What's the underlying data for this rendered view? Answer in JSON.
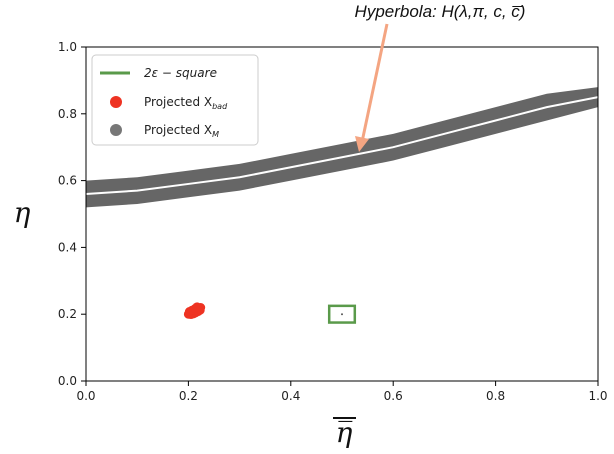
{
  "chart_data": {
    "type": "scatter",
    "xlabel": "η̅",
    "ylabel": "η",
    "xlim": [
      0.0,
      1.0
    ],
    "ylim": [
      0.0,
      1.0
    ],
    "x_ticks": [
      "0.0",
      "0.2",
      "0.4",
      "0.6",
      "0.8",
      "1.0"
    ],
    "y_ticks": [
      "0.0",
      "0.2",
      "0.4",
      "0.6",
      "0.8",
      "1.0"
    ],
    "grid": false,
    "legend_position": "top-left",
    "annotation": {
      "text": "Hyperbola: H(λ,π, c, c̅)",
      "points_to": {
        "x": 0.54,
        "y": 0.69
      }
    },
    "series": [
      {
        "name": "2ε − square",
        "kind": "square",
        "color": "#5a9a4a",
        "center": {
          "x": 0.5,
          "y": 0.2
        },
        "half_width": 0.025
      },
      {
        "name": "Projected X_bad",
        "kind": "points",
        "color": "#ee3322",
        "points": [
          {
            "x": 0.2,
            "y": 0.2
          },
          {
            "x": 0.203,
            "y": 0.203
          },
          {
            "x": 0.206,
            "y": 0.205
          },
          {
            "x": 0.209,
            "y": 0.207
          },
          {
            "x": 0.212,
            "y": 0.21
          },
          {
            "x": 0.215,
            "y": 0.212
          },
          {
            "x": 0.218,
            "y": 0.215
          },
          {
            "x": 0.221,
            "y": 0.218
          },
          {
            "x": 0.224,
            "y": 0.22
          },
          {
            "x": 0.205,
            "y": 0.199
          },
          {
            "x": 0.21,
            "y": 0.201
          },
          {
            "x": 0.214,
            "y": 0.204
          },
          {
            "x": 0.219,
            "y": 0.208
          },
          {
            "x": 0.223,
            "y": 0.212
          },
          {
            "x": 0.202,
            "y": 0.208
          },
          {
            "x": 0.207,
            "y": 0.212
          },
          {
            "x": 0.213,
            "y": 0.217
          },
          {
            "x": 0.217,
            "y": 0.222
          }
        ]
      },
      {
        "name": "Projected X_M",
        "kind": "band",
        "color": "#666666",
        "x": [
          0.0,
          0.1,
          0.2,
          0.3,
          0.4,
          0.5,
          0.6,
          0.7,
          0.8,
          0.9,
          1.0
        ],
        "y_low": [
          0.52,
          0.53,
          0.55,
          0.57,
          0.6,
          0.63,
          0.66,
          0.7,
          0.74,
          0.78,
          0.82
        ],
        "y_high": [
          0.6,
          0.61,
          0.63,
          0.65,
          0.68,
          0.71,
          0.74,
          0.78,
          0.82,
          0.86,
          0.88
        ]
      },
      {
        "kind": "curve",
        "color": "#ffffff",
        "x": [
          0.0,
          0.1,
          0.2,
          0.3,
          0.4,
          0.5,
          0.6,
          0.7,
          0.8,
          0.9,
          1.0
        ],
        "y": [
          0.56,
          0.57,
          0.59,
          0.61,
          0.64,
          0.67,
          0.7,
          0.74,
          0.78,
          0.82,
          0.85
        ]
      }
    ]
  },
  "legend": {
    "square_label": "2ε − square",
    "xbad_label": "Projected X",
    "xbad_sub": "bad",
    "xm_label": "Projected X",
    "xm_sub": "M"
  },
  "annotation_label": "Hyperbola: H(λ,π, c, c̅)"
}
